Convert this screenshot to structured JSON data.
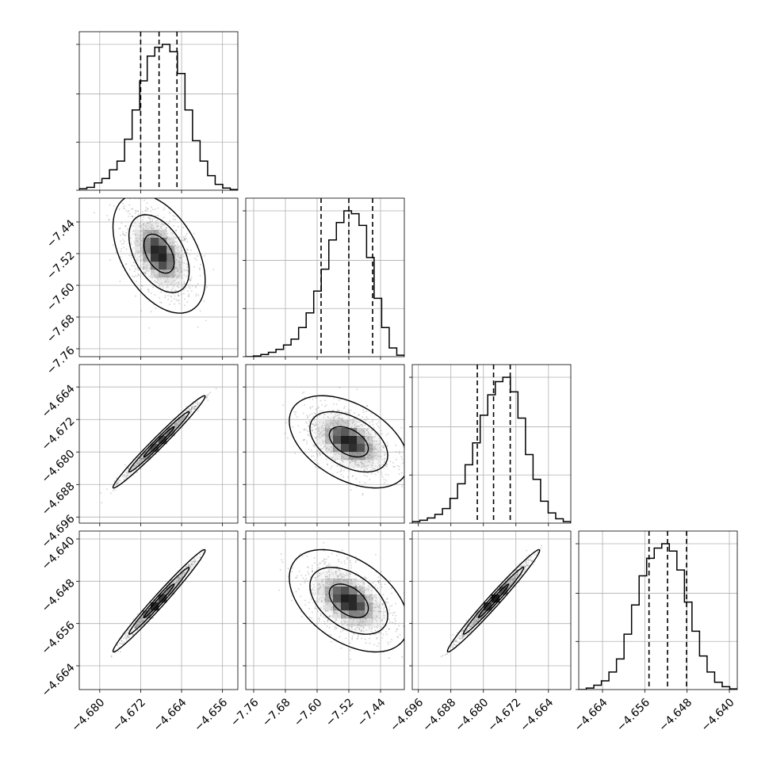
{
  "chart_data": {
    "type": "corner",
    "grid": true,
    "dimensions": 4,
    "parameters": [
      {
        "range": [
          -4.684,
          -4.653
        ],
        "ticks": [
          -4.68,
          -4.672,
          -4.664,
          -4.656
        ],
        "tick_labels": [
          "−4.680",
          "−4.672",
          "−4.664",
          "−4.656"
        ],
        "quantiles": [
          -4.672,
          -4.6684,
          -4.6649
        ],
        "median": -4.6684,
        "std": 0.0027,
        "hist": [
          0.01,
          0.02,
          0.05,
          0.08,
          0.14,
          0.2,
          0.35,
          0.55,
          0.75,
          0.92,
          0.98,
          1.0,
          0.95,
          0.8,
          0.55,
          0.34,
          0.2,
          0.1,
          0.04,
          0.015,
          0.005
        ]
      },
      {
        "range": [
          -7.78,
          -7.38
        ],
        "ticks": [
          -7.76,
          -7.68,
          -7.6,
          -7.52,
          -7.44
        ],
        "tick_labels": [
          "−7.76",
          "−7.68",
          "−7.60",
          "−7.52",
          "−7.44"
        ],
        "quantiles": [
          -7.59,
          -7.52,
          -7.46
        ],
        "median": -7.52,
        "std": 0.045,
        "hist": [
          0.0,
          0.005,
          0.015,
          0.03,
          0.05,
          0.08,
          0.12,
          0.2,
          0.3,
          0.45,
          0.6,
          0.8,
          0.92,
          1.0,
          0.98,
          0.9,
          0.68,
          0.4,
          0.2,
          0.06,
          0.01
        ]
      },
      {
        "range": [
          -4.6975,
          -4.6585
        ],
        "ticks": [
          -4.696,
          -4.688,
          -4.68,
          -4.672,
          -4.664
        ],
        "tick_labels": [
          "−4.696",
          "−4.688",
          "−4.680",
          "−4.672",
          "−4.664"
        ],
        "quantiles": [
          -4.6815,
          -4.6775,
          -4.6734
        ],
        "median": -4.6775,
        "std": 0.0034,
        "hist": [
          0.01,
          0.02,
          0.035,
          0.06,
          0.1,
          0.17,
          0.27,
          0.4,
          0.55,
          0.74,
          0.88,
          0.97,
          1.0,
          0.9,
          0.72,
          0.47,
          0.3,
          0.15,
          0.07,
          0.03,
          0.01
        ]
      },
      {
        "range": [
          -4.6685,
          -4.6385
        ],
        "ticks": [
          -4.664,
          -4.656,
          -4.648,
          -4.64
        ],
        "tick_labels": [
          "−4.664",
          "−4.656",
          "−4.648",
          "−4.640"
        ],
        "quantiles": [
          -4.6552,
          -4.6517,
          -4.6481
        ],
        "median": -4.6517,
        "std": 0.0029,
        "hist": [
          0.0,
          0.01,
          0.03,
          0.06,
          0.12,
          0.21,
          0.38,
          0.58,
          0.78,
          0.9,
          0.97,
          1.0,
          0.95,
          0.82,
          0.6,
          0.4,
          0.23,
          0.12,
          0.05,
          0.02,
          0.005
        ]
      }
    ],
    "correlations": [
      [
        1,
        -0.45,
        0.985,
        0.985
      ],
      [
        -0.45,
        1,
        -0.45,
        -0.45
      ],
      [
        0.985,
        -0.45,
        1,
        0.985
      ],
      [
        0.985,
        -0.45,
        0.985,
        1
      ]
    ],
    "contour_levels": [
      0.39,
      0.86,
      0.99
    ],
    "colors": {
      "line": "#000000",
      "grid": "#b0b0b0",
      "points": "#808080",
      "density": "#000000"
    }
  }
}
